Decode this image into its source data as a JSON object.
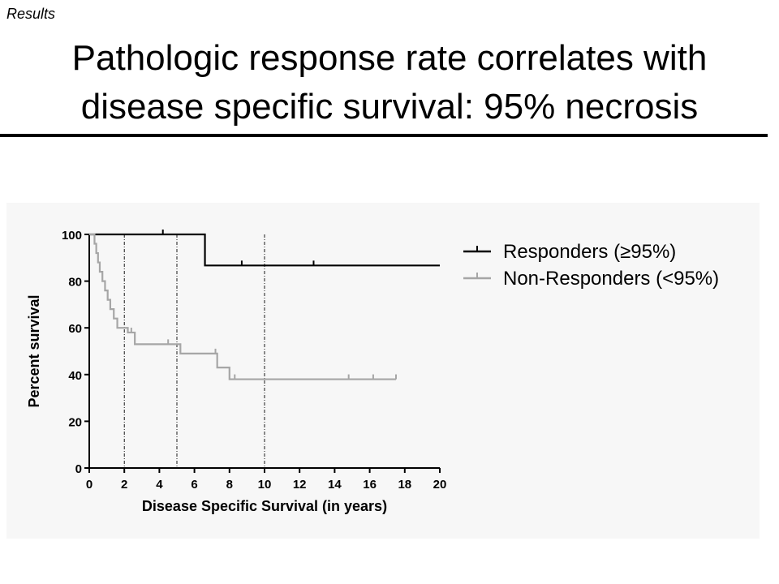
{
  "slide": {
    "section": "Results",
    "title_line1": "Pathologic response rate correlates with",
    "title_line2": "disease specific survival: 95% necrosis"
  },
  "chart_data": {
    "type": "line",
    "xlabel": "Disease Specific Survival (in years)",
    "ylabel": "Percent survival",
    "xlim": [
      0,
      20
    ],
    "ylim": [
      0,
      100
    ],
    "xticks": [
      0,
      2,
      4,
      6,
      8,
      10,
      12,
      14,
      16,
      18,
      20
    ],
    "yticks": [
      0,
      20,
      40,
      60,
      80,
      100
    ],
    "grid": false,
    "legend": "top-right",
    "reference_lines_x": [
      2,
      5,
      10
    ],
    "series": [
      {
        "name": "Responders (≥95%)",
        "color": "#000000",
        "steps": [
          [
            0,
            100
          ],
          [
            6.6,
            86.7
          ],
          [
            20,
            86.7
          ]
        ],
        "censored": [
          [
            4.2,
            100
          ],
          [
            8.7,
            86.7
          ],
          [
            12.8,
            86.7
          ]
        ]
      },
      {
        "name": "Non-Responders (<95%)",
        "color": "#a6a6a6",
        "steps": [
          [
            0,
            100
          ],
          [
            0.3,
            96
          ],
          [
            0.4,
            92
          ],
          [
            0.5,
            88
          ],
          [
            0.6,
            84
          ],
          [
            0.75,
            80
          ],
          [
            0.9,
            76
          ],
          [
            1.05,
            72
          ],
          [
            1.2,
            68
          ],
          [
            1.4,
            64
          ],
          [
            1.6,
            60
          ],
          [
            2.2,
            58
          ],
          [
            2.6,
            53
          ],
          [
            5.2,
            49
          ],
          [
            7.3,
            43
          ],
          [
            8.0,
            38
          ],
          [
            17.5,
            38
          ]
        ],
        "censored": [
          [
            2.4,
            58
          ],
          [
            4.5,
            53
          ],
          [
            7.2,
            49
          ],
          [
            8.3,
            38
          ],
          [
            14.8,
            38
          ],
          [
            16.2,
            38
          ],
          [
            17.5,
            38
          ]
        ]
      }
    ]
  }
}
